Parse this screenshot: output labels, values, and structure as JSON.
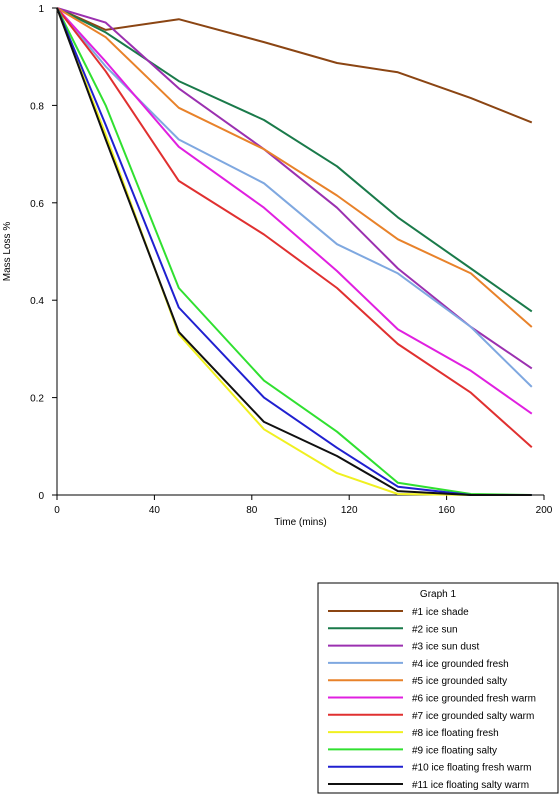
{
  "chart_data": {
    "type": "line",
    "xlabel": "Time (mins)",
    "ylabel": "Mass Loss %",
    "xlim": [
      0,
      200
    ],
    "ylim": [
      0,
      1
    ],
    "xticks": [
      0,
      40,
      80,
      120,
      160,
      200
    ],
    "yticks": [
      0,
      0.2,
      0.4,
      0.6,
      0.8,
      1
    ],
    "x_tick_labels": [
      "0",
      "40",
      "80",
      "120",
      "160",
      "200"
    ],
    "y_tick_labels": [
      "0",
      "0.2",
      "0.4",
      "0.6",
      "0.8",
      "1"
    ],
    "grid": false,
    "legend": {
      "title": "Graph 1",
      "placement": "below-right"
    },
    "series": [
      {
        "name": "#1 ice shade",
        "color": "#8B4513",
        "points": [
          [
            0,
            1
          ],
          [
            20,
            0.955
          ],
          [
            50,
            0.977
          ],
          [
            85,
            0.93
          ],
          [
            115,
            0.887
          ],
          [
            140,
            0.868
          ],
          [
            170,
            0.815
          ],
          [
            195,
            0.765
          ]
        ]
      },
      {
        "name": "#2 ice sun",
        "color": "#1A7A4A",
        "points": [
          [
            0,
            1
          ],
          [
            20,
            0.95
          ],
          [
            50,
            0.85
          ],
          [
            85,
            0.77
          ],
          [
            115,
            0.675
          ],
          [
            140,
            0.57
          ],
          [
            170,
            0.465
          ],
          [
            195,
            0.377
          ]
        ]
      },
      {
        "name": "#3 ice sun dust",
        "color": "#9B30B0",
        "points": [
          [
            0,
            1
          ],
          [
            20,
            0.97
          ],
          [
            50,
            0.835
          ],
          [
            85,
            0.71
          ],
          [
            115,
            0.59
          ],
          [
            140,
            0.465
          ],
          [
            170,
            0.345
          ],
          [
            195,
            0.26
          ]
        ]
      },
      {
        "name": "#4 ice grounded fresh",
        "color": "#7FA8E0",
        "points": [
          [
            0,
            1
          ],
          [
            20,
            0.88
          ],
          [
            50,
            0.73
          ],
          [
            85,
            0.64
          ],
          [
            115,
            0.515
          ],
          [
            140,
            0.455
          ],
          [
            170,
            0.345
          ],
          [
            195,
            0.222
          ]
        ]
      },
      {
        "name": "#5 ice grounded salty",
        "color": "#E8822A",
        "points": [
          [
            0,
            1
          ],
          [
            20,
            0.94
          ],
          [
            50,
            0.795
          ],
          [
            85,
            0.71
          ],
          [
            115,
            0.615
          ],
          [
            140,
            0.525
          ],
          [
            170,
            0.455
          ],
          [
            195,
            0.345
          ]
        ]
      },
      {
        "name": "#6 ice grounded fresh warm",
        "color": "#E020E0",
        "points": [
          [
            0,
            1
          ],
          [
            20,
            0.89
          ],
          [
            50,
            0.715
          ],
          [
            85,
            0.59
          ],
          [
            115,
            0.46
          ],
          [
            140,
            0.34
          ],
          [
            170,
            0.255
          ],
          [
            195,
            0.167
          ]
        ]
      },
      {
        "name": "#7 ice grounded salty warm",
        "color": "#E03030",
        "points": [
          [
            0,
            1
          ],
          [
            20,
            0.87
          ],
          [
            50,
            0.645
          ],
          [
            85,
            0.535
          ],
          [
            115,
            0.425
          ],
          [
            140,
            0.31
          ],
          [
            170,
            0.21
          ],
          [
            195,
            0.098
          ]
        ]
      },
      {
        "name": "#8 ice floating fresh",
        "color": "#F0F020",
        "points": [
          [
            0,
            1
          ],
          [
            20,
            0.74
          ],
          [
            50,
            0.33
          ],
          [
            85,
            0.135
          ],
          [
            115,
            0.045
          ],
          [
            140,
            0.002
          ],
          [
            170,
            0
          ],
          [
            195,
            0
          ]
        ]
      },
      {
        "name": "#9 ice floating salty",
        "color": "#30E030",
        "points": [
          [
            0,
            1
          ],
          [
            20,
            0.8
          ],
          [
            50,
            0.425
          ],
          [
            85,
            0.235
          ],
          [
            115,
            0.13
          ],
          [
            140,
            0.025
          ],
          [
            170,
            0.002
          ],
          [
            195,
            0
          ]
        ]
      },
      {
        "name": "#10 ice floating fresh warm",
        "color": "#2020D0",
        "points": [
          [
            0,
            1
          ],
          [
            20,
            0.76
          ],
          [
            50,
            0.385
          ],
          [
            85,
            0.2
          ],
          [
            115,
            0.097
          ],
          [
            140,
            0.017
          ],
          [
            170,
            0
          ],
          [
            195,
            0
          ]
        ]
      },
      {
        "name": "#11 ice floating salty warm",
        "color": "#101010",
        "points": [
          [
            0,
            1
          ],
          [
            20,
            0.73
          ],
          [
            50,
            0.335
          ],
          [
            85,
            0.15
          ],
          [
            115,
            0.08
          ],
          [
            140,
            0.008
          ],
          [
            170,
            0
          ],
          [
            195,
            0
          ]
        ]
      }
    ]
  }
}
